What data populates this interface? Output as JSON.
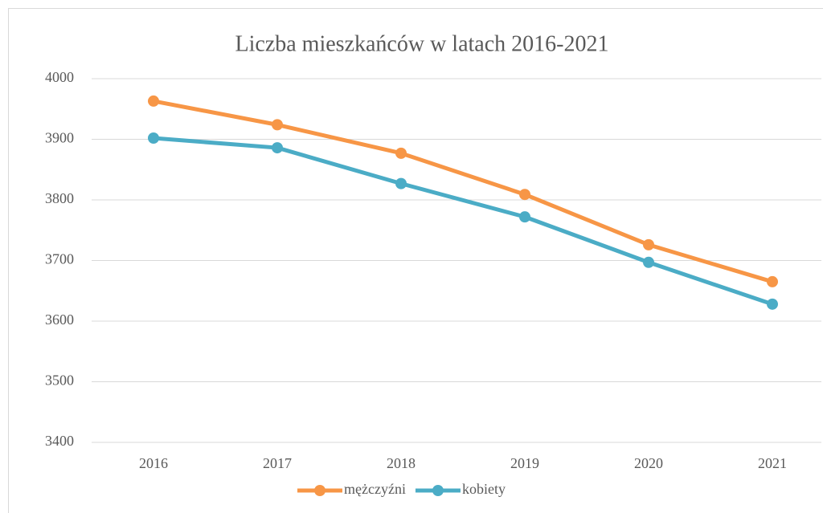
{
  "chart_data": {
    "type": "line",
    "title": "Liczba mieszkańców w latach 2016-2021",
    "categories": [
      "2016",
      "2017",
      "2018",
      "2019",
      "2020",
      "2021"
    ],
    "series": [
      {
        "name": "mężczyźni",
        "color": "#f79646",
        "values": [
          3963,
          3924,
          3877,
          3809,
          3726,
          3665
        ]
      },
      {
        "name": "kobiety",
        "color": "#4bacc6",
        "values": [
          3902,
          3886,
          3827,
          3772,
          3697,
          3628
        ]
      }
    ],
    "ylim": [
      3400,
      4000
    ],
    "yticks": [
      3400,
      3500,
      3600,
      3700,
      3800,
      3900,
      4000
    ],
    "grid": true,
    "legend": "bottom"
  }
}
